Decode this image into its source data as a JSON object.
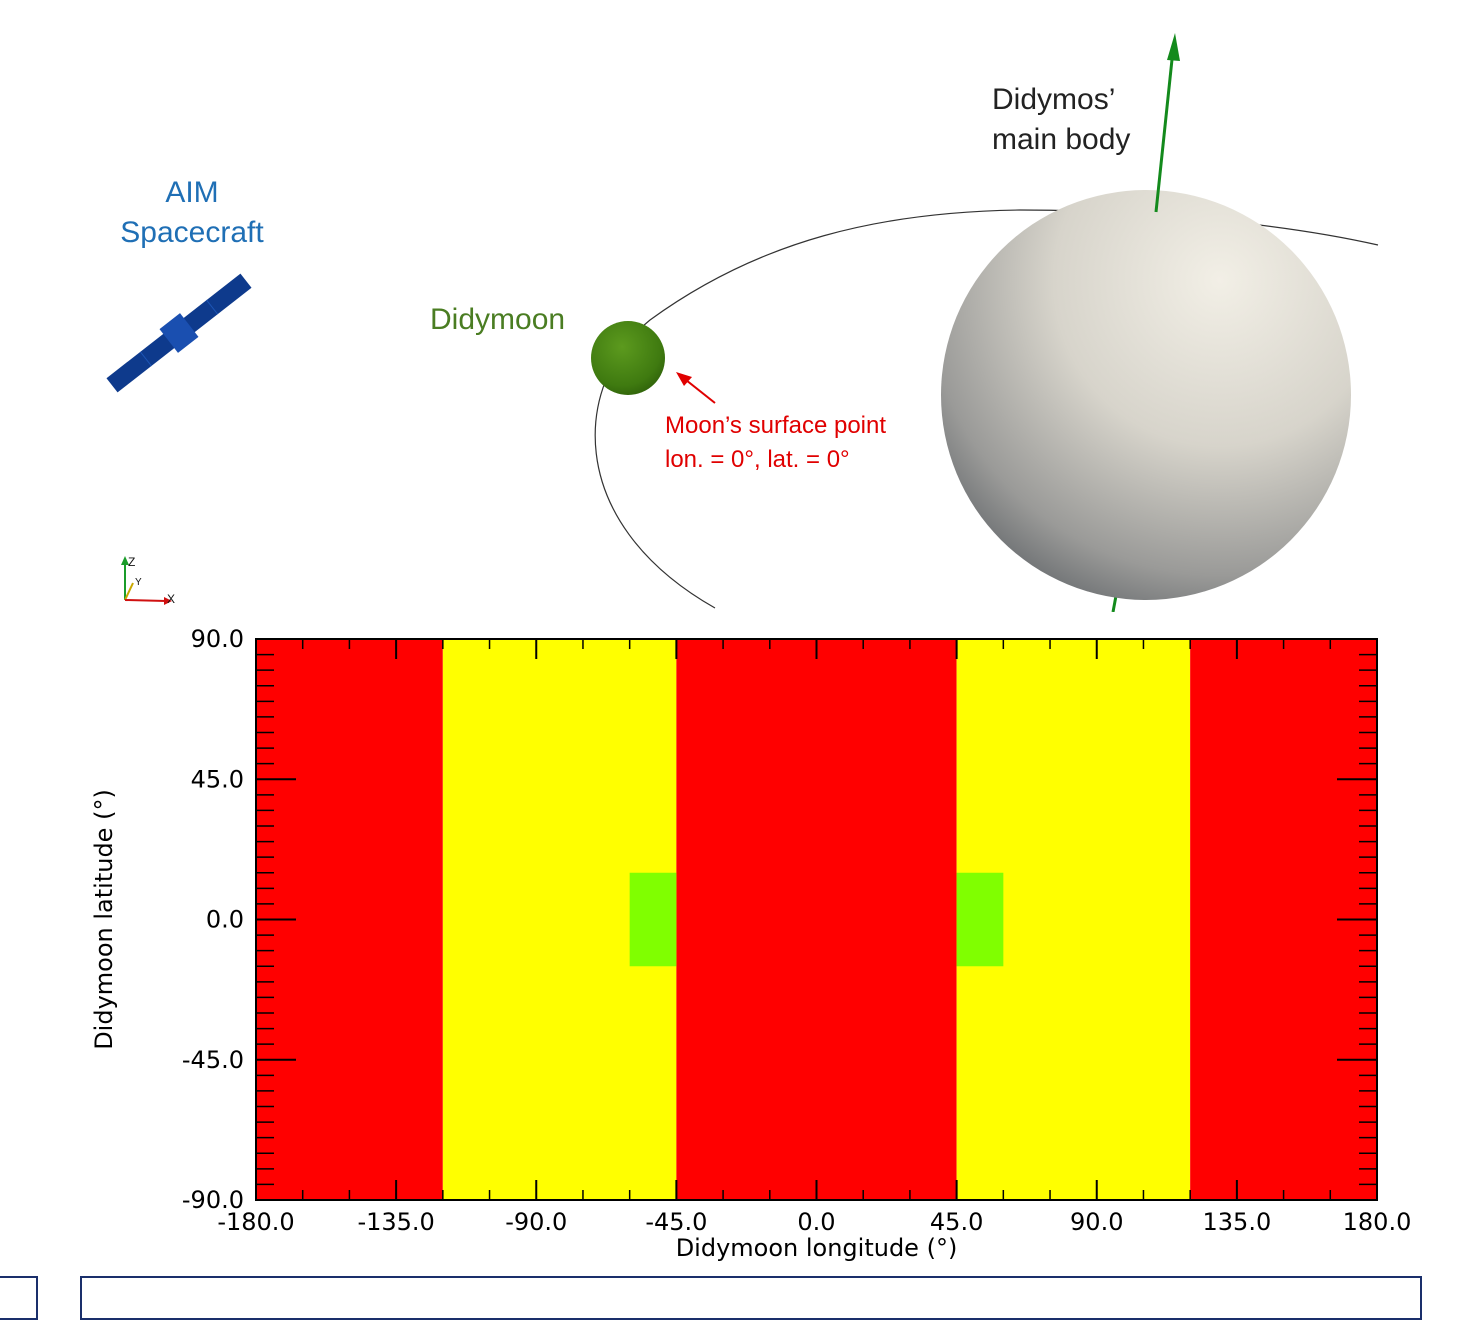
{
  "scene": {
    "spacecraft_label_line1": "AIM",
    "spacecraft_label_line2": "Spacecraft",
    "moon_label": "Didymoon",
    "main_body_label_line1": "Didymos’",
    "main_body_label_line2": "main body",
    "surface_point_line1": "Moon’s surface point",
    "surface_point_line2": "lon. = 0°, lat. =  0°",
    "axes_triad": {
      "z": "Z",
      "y": "Y",
      "x": "X"
    },
    "colors": {
      "spacecraft": "#0e3a8c",
      "moon": "#3f7a10",
      "moon_label": "#4a7d22",
      "spacecraft_label": "#1f6fb5",
      "surface_point": "#e00000",
      "spin_axis": "#138a1c",
      "orbit": "#333333"
    }
  },
  "chart_data": {
    "type": "heatmap",
    "xlabel": "Didymoon longitude (°)",
    "ylabel": "Didymoon latitude (°)",
    "xlim": [
      -180,
      180
    ],
    "ylim": [
      -90,
      90
    ],
    "xticks": [
      "-180.0",
      "-135.0",
      "-90.0",
      "-45.0",
      "0.0",
      "45.0",
      "90.0",
      "135.0",
      "180.0"
    ],
    "yticks": [
      "-90.0",
      "-45.0",
      "0.0",
      "45.0",
      "90.0"
    ],
    "regions": [
      {
        "lon": [
          -180,
          -120
        ],
        "lat": [
          -90,
          90
        ],
        "color": "#ff0000"
      },
      {
        "lon": [
          -120,
          -45
        ],
        "lat": [
          -90,
          90
        ],
        "color": "#ffff00"
      },
      {
        "lon": [
          -45,
          45
        ],
        "lat": [
          -90,
          90
        ],
        "color": "#ff0000"
      },
      {
        "lon": [
          45,
          120
        ],
        "lat": [
          -90,
          90
        ],
        "color": "#ffff00"
      },
      {
        "lon": [
          120,
          180
        ],
        "lat": [
          -90,
          90
        ],
        "color": "#ff0000"
      },
      {
        "lon": [
          -60,
          -45
        ],
        "lat": [
          -15,
          15
        ],
        "color": "#80ff00"
      },
      {
        "lon": [
          45,
          60
        ],
        "lat": [
          -15,
          15
        ],
        "color": "#80ff00"
      }
    ]
  }
}
